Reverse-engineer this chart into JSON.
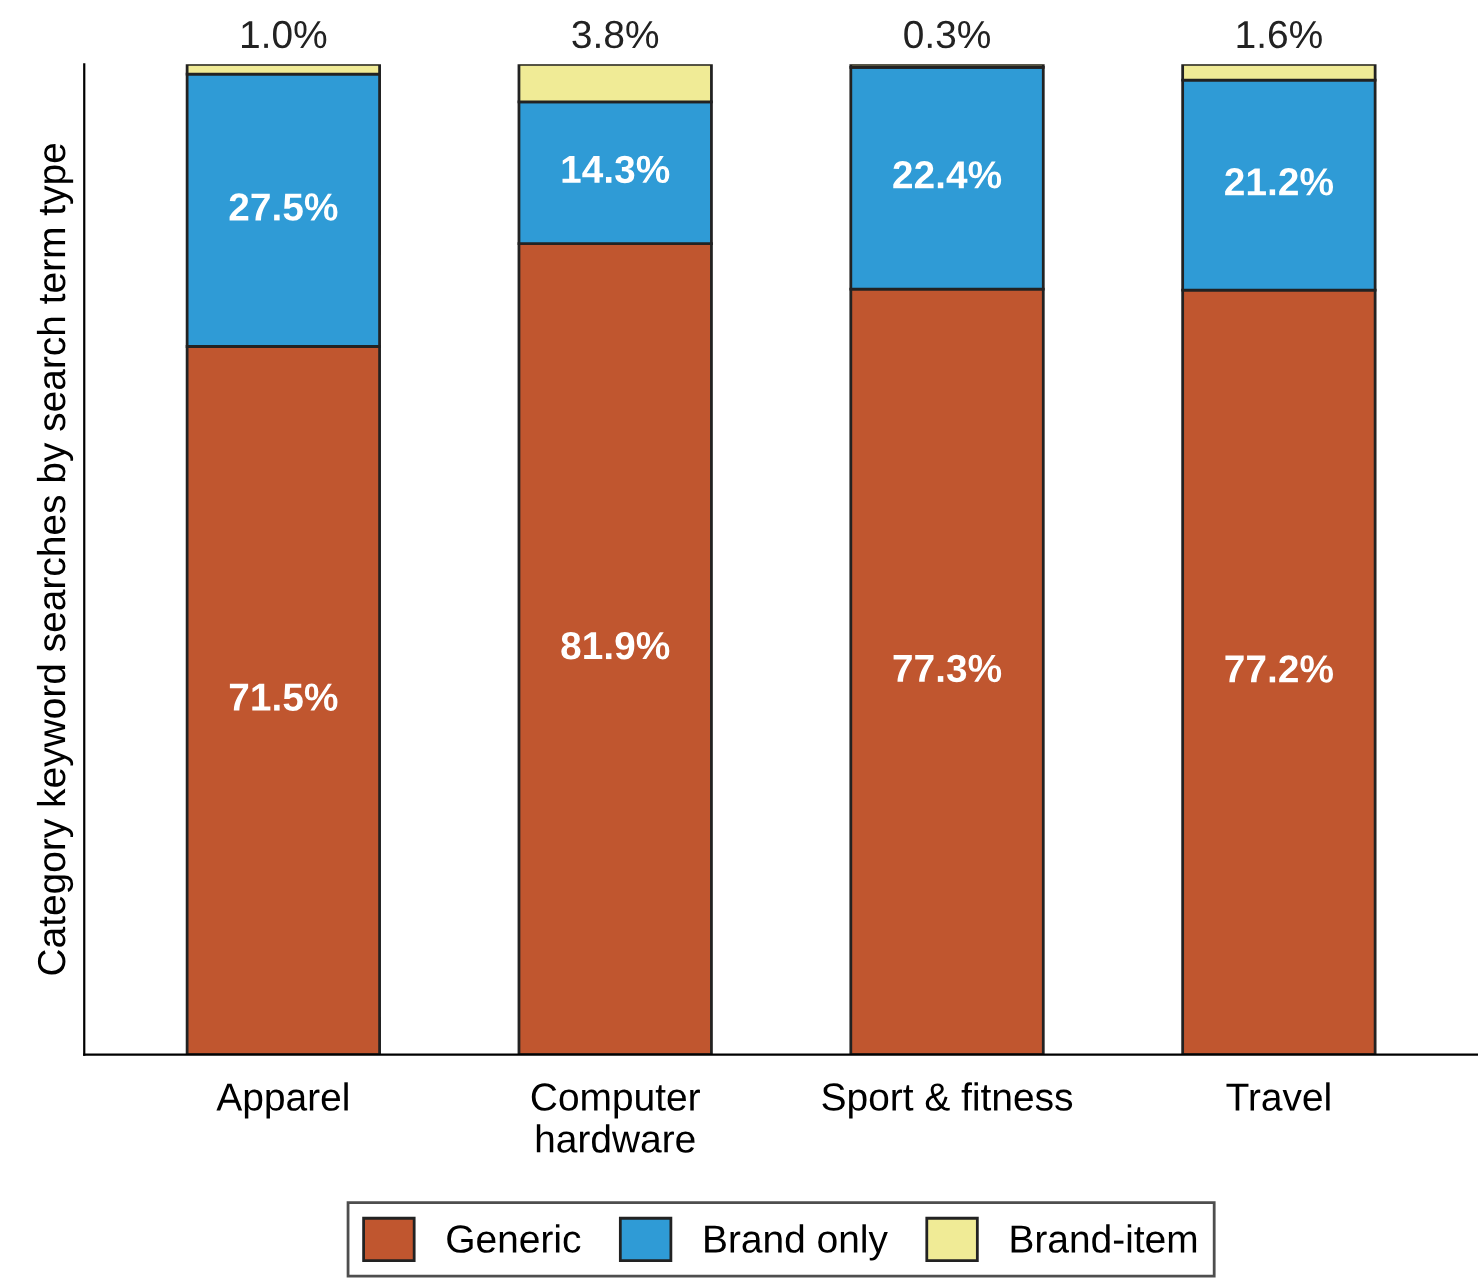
{
  "chart_data": {
    "type": "bar",
    "stacked": true,
    "ylabel": "Category keyword searches by search term type",
    "categories": [
      "Apparel",
      "Computer\nhardware",
      "Sport & fitness",
      "Travel"
    ],
    "series": [
      {
        "name": "Generic",
        "color": "#c0562f",
        "values": [
          71.5,
          81.9,
          77.3,
          77.2
        ],
        "value_labels": [
          "71.5%",
          "81.9%",
          "77.3%",
          "77.2%"
        ]
      },
      {
        "name": "Brand only",
        "color": "#2f9bd6",
        "values": [
          27.5,
          14.3,
          22.4,
          21.2
        ],
        "value_labels": [
          "27.5%",
          "14.3%",
          "22.4%",
          "21.2%"
        ]
      },
      {
        "name": "Brand-item",
        "color": "#f0eb96",
        "values": [
          1.0,
          3.8,
          0.3,
          1.6
        ],
        "value_labels": [
          "1.0%",
          "3.8%",
          "0.3%",
          "1.6%"
        ]
      }
    ],
    "legend": "bottom",
    "grid": false
  }
}
